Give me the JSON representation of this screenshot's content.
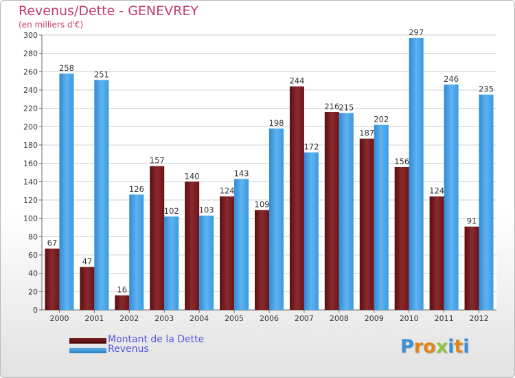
{
  "title": "Revenus/Dette - GENEVREY",
  "subtitle": "(en milliers d'€)",
  "logo_text": "Proxiti",
  "colors": {
    "dette": "#7a1e22",
    "revenus": "#3b9be0",
    "title": "#c43a6a",
    "legend_text": "#5555dd"
  },
  "legend": [
    {
      "label": "Montant de la Dette",
      "color": "#5c0d0d"
    },
    {
      "label": "Revenus",
      "color": "#3b9be0"
    }
  ],
  "chart_data": {
    "type": "bar",
    "title": "Revenus/Dette - GENEVREY",
    "ylabel": "(en milliers d'€)",
    "xlabel": "",
    "ylim": [
      0,
      300
    ],
    "ytick_step": 20,
    "grid": true,
    "legend_position": "bottom-left",
    "categories": [
      "2000",
      "2001",
      "2002",
      "2003",
      "2004",
      "2005",
      "2006",
      "2007",
      "2008",
      "2009",
      "2010",
      "2011",
      "2012"
    ],
    "series": [
      {
        "name": "Montant de la Dette",
        "values": [
          67,
          47,
          16,
          157,
          140,
          124,
          109,
          244,
          216,
          187,
          156,
          124,
          91
        ]
      },
      {
        "name": "Revenus",
        "values": [
          258,
          251,
          126,
          102,
          103,
          143,
          198,
          172,
          215,
          202,
          297,
          246,
          235
        ]
      }
    ]
  }
}
